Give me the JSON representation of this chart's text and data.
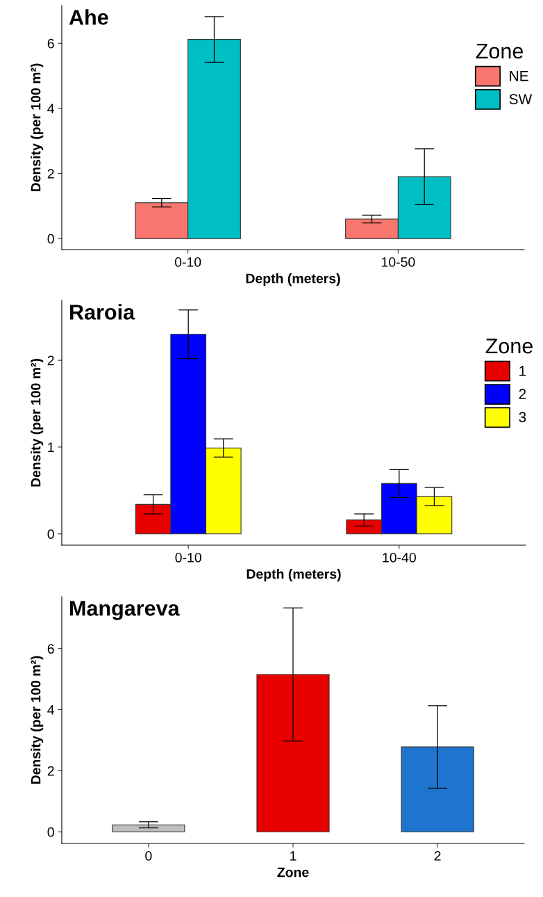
{
  "chart_data": [
    {
      "type": "bar",
      "title": "Ahe",
      "xlabel": "Depth (meters)",
      "ylabel": "Density (per 100 m²)",
      "legend_title": "Zone",
      "legend": "right",
      "categories": [
        "0-10",
        "10-50"
      ],
      "ylim": [
        -0.34,
        7.16
      ],
      "yticks": [
        0,
        2,
        4,
        6
      ],
      "grid": false,
      "series": [
        {
          "name": "NE",
          "color": "#f8766d",
          "values": [
            1.1,
            0.6
          ],
          "errors": [
            0.13,
            0.12
          ]
        },
        {
          "name": "SW",
          "color": "#00bfc4",
          "values": [
            6.12,
            1.9
          ],
          "errors": [
            0.7,
            0.86
          ]
        }
      ]
    },
    {
      "type": "bar",
      "title": "Raroia",
      "xlabel": "Depth (meters)",
      "ylabel": "Density (per 100 m²)",
      "legend_title": "Zone",
      "legend": "right",
      "categories": [
        "0-10",
        "10-40"
      ],
      "ylim": [
        -0.13,
        2.69
      ],
      "yticks": [
        0,
        1,
        2
      ],
      "grid": false,
      "series": [
        {
          "name": "1",
          "color": "#e80000",
          "values": [
            0.34,
            0.16
          ],
          "errors": [
            0.11,
            0.07
          ]
        },
        {
          "name": "2",
          "color": "#0000ff",
          "values": [
            2.3,
            0.58
          ],
          "errors": [
            0.28,
            0.16
          ]
        },
        {
          "name": "3",
          "color": "#ffff00",
          "values": [
            0.99,
            0.43
          ],
          "errors": [
            0.105,
            0.105
          ]
        }
      ]
    },
    {
      "type": "bar",
      "title": "Mangareva",
      "xlabel": "Zone",
      "ylabel": "Density (per 100 m²)",
      "legend": false,
      "categories": [
        "0",
        "1",
        "2"
      ],
      "ylim": [
        -0.38,
        7.7
      ],
      "yticks": [
        0,
        2,
        4,
        6
      ],
      "grid": false,
      "values": [
        0.23,
        5.15,
        2.78
      ],
      "errors": [
        0.1,
        2.18,
        1.35
      ],
      "colors": [
        "#bebebe",
        "#e80000",
        "#1f74cf"
      ]
    }
  ]
}
